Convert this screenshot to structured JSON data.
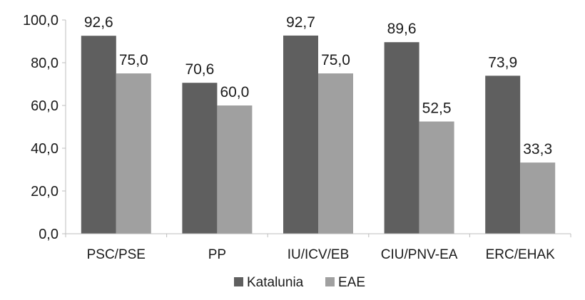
{
  "chart_data": {
    "type": "bar",
    "categories": [
      "PSC/PSE",
      "PP",
      "IU/ICV/EB",
      "CIU/PNV-EA",
      "ERC/EHAK"
    ],
    "series": [
      {
        "name": "Katalunia",
        "values": [
          92.6,
          70.6,
          92.7,
          89.6,
          73.9
        ],
        "labels": [
          "92,6",
          "70,6",
          "92,7",
          "89,6",
          "73,9"
        ],
        "color": "#5f5f5f"
      },
      {
        "name": "EAE",
        "values": [
          75.0,
          60.0,
          75.0,
          52.5,
          33.3
        ],
        "labels": [
          "75,0",
          "60,0",
          "75,0",
          "52,5",
          "33,3"
        ],
        "color": "#a0a0a0"
      }
    ],
    "yticks": [
      "0,0",
      "20,0",
      "40,0",
      "60,0",
      "80,0",
      "100,0"
    ],
    "ylim": [
      0,
      100
    ],
    "title": "",
    "xlabel": "",
    "ylabel": "",
    "grid": false,
    "legend": "bottom-center"
  }
}
